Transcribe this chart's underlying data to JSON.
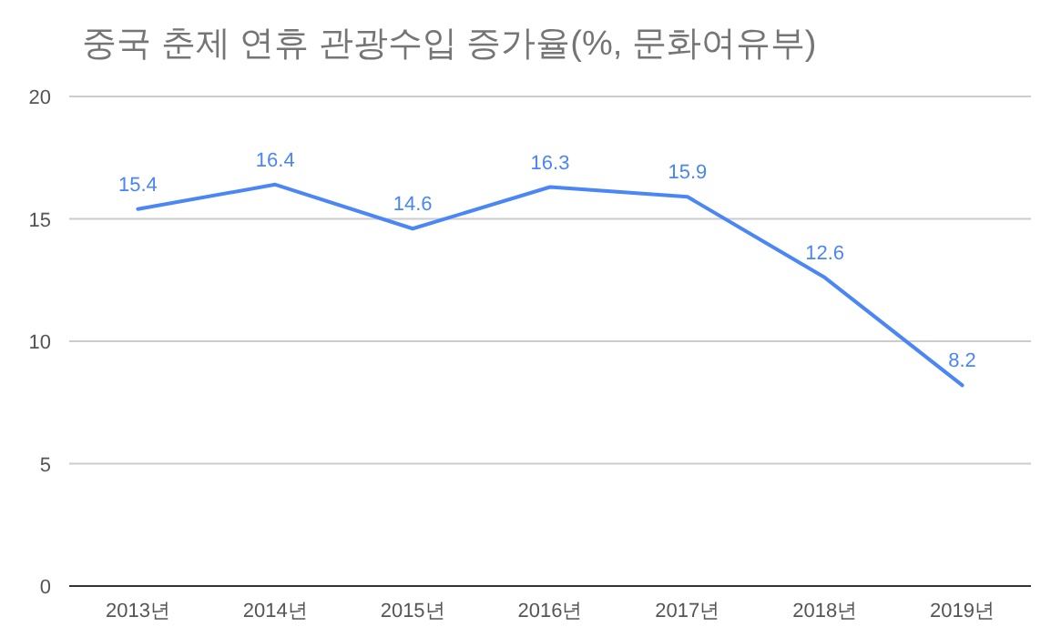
{
  "chart_data": {
    "type": "line",
    "title": "중국 춘제 연휴 관광수입 증가율(%, 문화여유부)",
    "categories": [
      "2013년",
      "2014년",
      "2015년",
      "2016년",
      "2017년",
      "2018년",
      "2019년"
    ],
    "series": [
      {
        "color": "#4a86f5",
        "values": [
          15.4,
          16.4,
          14.6,
          16.3,
          15.9,
          12.6,
          8.2
        ]
      }
    ],
    "ylim": [
      0,
      20
    ],
    "yticks": [
      0,
      5,
      10,
      15,
      20
    ],
    "grid": "y",
    "data_labels": true
  }
}
